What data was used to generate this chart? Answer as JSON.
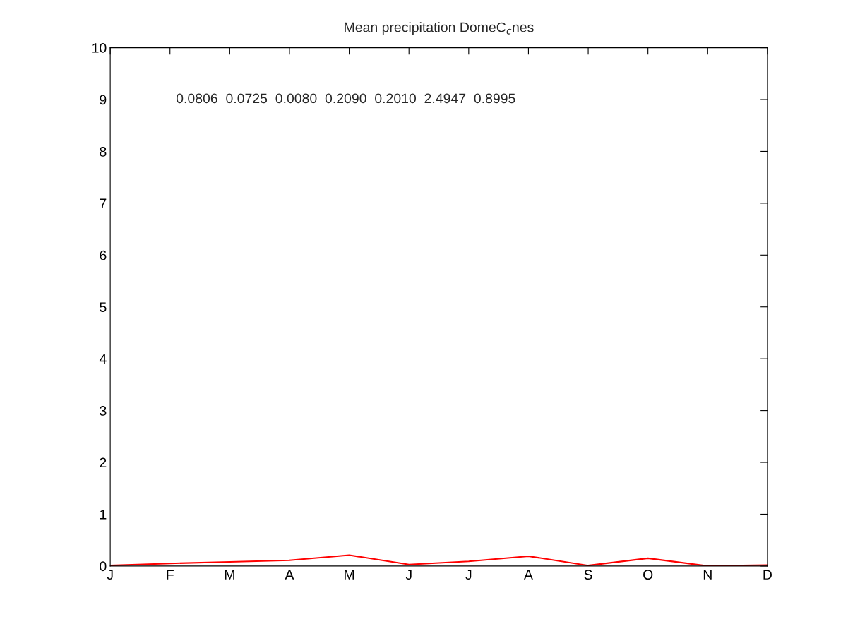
{
  "chart_data": {
    "type": "line",
    "title": "Mean precipitation DomeC$_{c}$nes",
    "categories": [
      "J",
      "F",
      "M",
      "A",
      "M",
      "J",
      "J",
      "A",
      "S",
      "O",
      "N",
      "D"
    ],
    "series": [
      {
        "color": "#ff0000",
        "values": [
          0.01,
          0.05,
          0.08,
          0.11,
          0.21,
          0.03,
          0.09,
          0.19,
          0.01,
          0.15,
          0.0,
          0.02
        ]
      }
    ],
    "ylim": [
      0,
      10
    ],
    "yticks": [
      0,
      1,
      2,
      3,
      4,
      5,
      6,
      7,
      8,
      9,
      10
    ],
    "annotations": [
      "0.0806  0.0725  0.0080  0.2090  0.2010  2.4947  0.8995"
    ],
    "grid": false,
    "legend": false,
    "marker": "none",
    "line_style": "solid"
  }
}
